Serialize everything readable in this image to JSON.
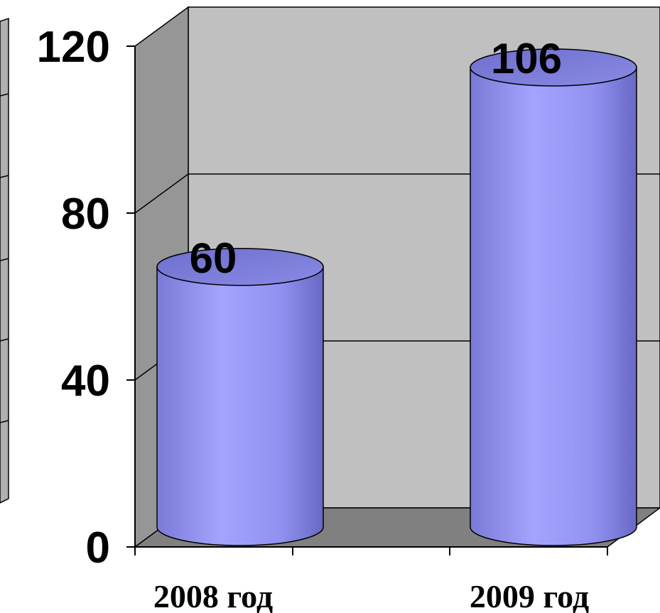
{
  "chart_data": {
    "type": "bar",
    "style": "3d-cylinder",
    "categories": [
      "2008 год",
      "2009 год"
    ],
    "values": [
      60,
      106
    ],
    "data_labels": [
      "60",
      "106"
    ],
    "ylim": [
      0,
      120
    ],
    "yticks": [
      0,
      40,
      80,
      120
    ],
    "yticks_labels": [
      "0",
      "40",
      "80",
      "120"
    ],
    "grid": true,
    "legend": "none",
    "colors": {
      "bar": "#9999ff",
      "wall": "#c0c0c0",
      "side_wall": "#969696",
      "floor": "#808080"
    }
  }
}
